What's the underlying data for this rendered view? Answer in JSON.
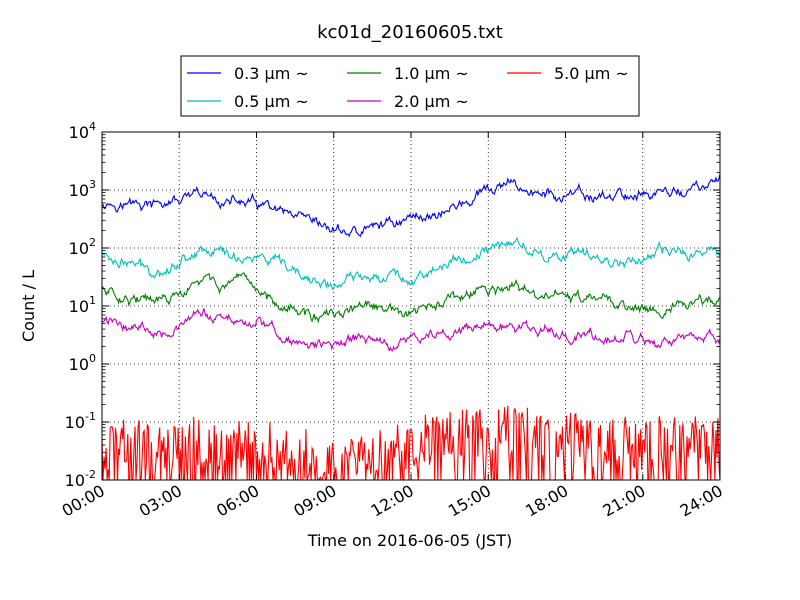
{
  "chart_data": {
    "type": "line",
    "title": "kc01d_20160605.txt",
    "xlabel": "Time on 2016-06-05 (JST)",
    "ylabel": "Count / L",
    "yscale": "log",
    "ylim": [
      0.01,
      10000
    ],
    "xlim": [
      "00:00",
      "24:00"
    ],
    "x_ticks": [
      "00:00",
      "03:00",
      "06:00",
      "09:00",
      "12:00",
      "15:00",
      "18:00",
      "21:00",
      "24:00"
    ],
    "y_ticks": [
      {
        "base": "10",
        "exp": "-2",
        "value": 0.01
      },
      {
        "base": "10",
        "exp": "-1",
        "value": 0.1
      },
      {
        "base": "10",
        "exp": "0",
        "value": 1
      },
      {
        "base": "10",
        "exp": "1",
        "value": 10
      },
      {
        "base": "10",
        "exp": "2",
        "value": 100
      },
      {
        "base": "10",
        "exp": "3",
        "value": 1000
      },
      {
        "base": "10",
        "exp": "4",
        "value": 10000
      }
    ],
    "grid": true,
    "legend_position": "top",
    "x": [
      "00:00",
      "01:00",
      "02:00",
      "03:00",
      "04:00",
      "05:00",
      "06:00",
      "07:00",
      "08:00",
      "09:00",
      "10:00",
      "11:00",
      "12:00",
      "13:00",
      "14:00",
      "15:00",
      "16:00",
      "17:00",
      "18:00",
      "19:00",
      "20:00",
      "21:00",
      "22:00",
      "23:00",
      "24:00"
    ],
    "series": [
      {
        "name": "0.3 μm ~",
        "color": "#0000ff",
        "values": [
          650,
          580,
          520,
          640,
          720,
          620,
          560,
          360,
          230,
          200,
          180,
          270,
          330,
          400,
          560,
          920,
          1200,
          830,
          760,
          740,
          790,
          860,
          900,
          1000,
          1300
        ]
      },
      {
        "name": "0.5 μm ~",
        "color": "#00bfbf",
        "values": [
          80,
          55,
          40,
          60,
          105,
          75,
          70,
          44,
          27,
          22,
          30,
          38,
          30,
          45,
          60,
          90,
          130,
          80,
          70,
          70,
          60,
          70,
          78,
          80,
          92
        ]
      },
      {
        "name": "1.0 μm ~",
        "color": "#008000",
        "values": [
          20,
          15,
          11,
          14,
          28,
          21,
          18,
          12,
          7,
          6,
          10,
          8,
          7,
          10,
          14,
          18,
          20,
          14,
          16,
          12,
          11,
          9,
          10,
          10,
          12
        ]
      },
      {
        "name": "2.0 μm ~",
        "color": "#bf00bf",
        "values": [
          5.5,
          4.8,
          4.0,
          4.5,
          7.0,
          5.5,
          5.5,
          3.0,
          2.0,
          2.2,
          2.8,
          2.2,
          2.5,
          3.2,
          4.0,
          4.4,
          4.2,
          3.4,
          3.6,
          3.0,
          2.7,
          2.3,
          2.2,
          2.4,
          2.9
        ]
      },
      {
        "name": "5.0 μm ~",
        "color": "#ff0000",
        "values": [
          0.03,
          0.035,
          0.03,
          0.03,
          0.035,
          0.03,
          0.03,
          0.025,
          0.02,
          0.015,
          0.015,
          0.02,
          0.03,
          0.04,
          0.045,
          0.05,
          0.05,
          0.045,
          0.04,
          0.035,
          0.035,
          0.03,
          0.035,
          0.035,
          0.035
        ]
      }
    ]
  }
}
